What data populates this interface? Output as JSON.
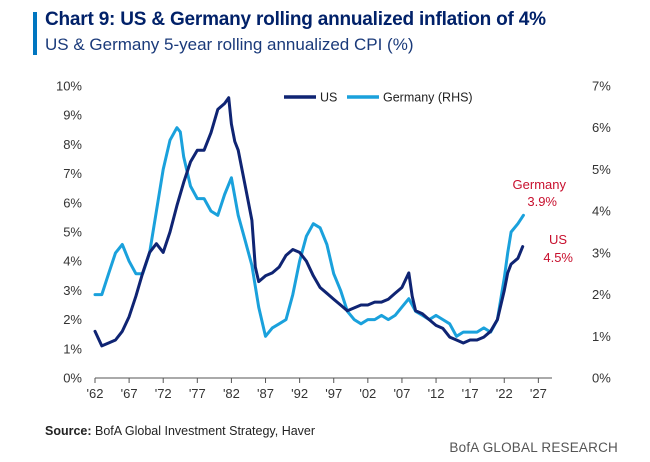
{
  "header": {
    "title": "Chart 9: US & Germany rolling annualized inflation of 4%",
    "subtitle": "US & Germany 5-year rolling annualized CPI (%)",
    "accent_color": "#0076c0"
  },
  "footer": {
    "source_prefix": "Source:",
    "source_text": " BofA Global Investment Strategy, Haver",
    "branding": "BofA GLOBAL RESEARCH"
  },
  "chart_data": {
    "type": "line",
    "title": "US & Germany 5-year rolling annualized CPI (%)",
    "x_ticks": [
      "'62",
      "'67",
      "'72",
      "'77",
      "'82",
      "'87",
      "'92",
      "'97",
      "'02",
      "'07",
      "'12",
      "'17",
      "'22",
      "'27"
    ],
    "x_tick_years": [
      1962,
      1967,
      1972,
      1977,
      1982,
      1987,
      1992,
      1997,
      2002,
      2007,
      2012,
      2017,
      2022,
      2027
    ],
    "xlim": [
      1962,
      2029
    ],
    "y_left": {
      "min": 0,
      "max": 10,
      "ticks": [
        "0%",
        "1%",
        "2%",
        "3%",
        "4%",
        "5%",
        "6%",
        "7%",
        "8%",
        "9%",
        "10%"
      ],
      "label": "US"
    },
    "y_right": {
      "min": 0,
      "max": 7,
      "ticks": [
        "0%",
        "1%",
        "2%",
        "3%",
        "4%",
        "5%",
        "6%",
        "7%"
      ],
      "label": "Germany (RHS)"
    },
    "series": [
      {
        "name": "US",
        "axis": "left",
        "color": "#0f2473",
        "x": [
          1962,
          1963,
          1964,
          1965,
          1966,
          1967,
          1968,
          1969,
          1970,
          1971,
          1972,
          1973,
          1974,
          1975,
          1976,
          1977,
          1978,
          1979,
          1980,
          1981,
          1981.6,
          1982,
          1982.5,
          1983,
          1984,
          1985,
          1985.5,
          1986,
          1987,
          1988,
          1989,
          1990,
          1991,
          1992,
          1993,
          1994,
          1995,
          1996,
          1997,
          1998,
          1999,
          2000,
          2001,
          2002,
          2003,
          2004,
          2005,
          2006,
          2007,
          2008,
          2008.5,
          2009,
          2010,
          2011,
          2012,
          2013,
          2014,
          2015,
          2016,
          2017,
          2018,
          2019,
          2020,
          2021,
          2022,
          2022.5,
          2023,
          2024,
          2024.7
        ],
        "values": [
          1.6,
          1.1,
          1.2,
          1.3,
          1.6,
          2.1,
          2.8,
          3.6,
          4.3,
          4.6,
          4.3,
          5.0,
          5.9,
          6.7,
          7.4,
          7.8,
          7.8,
          8.4,
          9.2,
          9.4,
          9.6,
          8.7,
          8.1,
          7.8,
          6.6,
          5.4,
          3.8,
          3.3,
          3.5,
          3.6,
          3.8,
          4.2,
          4.4,
          4.3,
          4.0,
          3.5,
          3.1,
          2.9,
          2.7,
          2.5,
          2.3,
          2.4,
          2.5,
          2.5,
          2.6,
          2.6,
          2.7,
          2.9,
          3.1,
          3.6,
          2.8,
          2.3,
          2.2,
          2.0,
          1.8,
          1.7,
          1.4,
          1.3,
          1.2,
          1.3,
          1.3,
          1.4,
          1.6,
          2.0,
          3.0,
          3.6,
          3.9,
          4.1,
          4.5
        ]
      },
      {
        "name": "Germany (RHS)",
        "axis": "right",
        "color": "#1aa1dc",
        "x": [
          1962,
          1963,
          1964,
          1965,
          1966,
          1967,
          1968,
          1969,
          1970,
          1971,
          1972,
          1973,
          1974,
          1974.5,
          1975,
          1976,
          1977,
          1978,
          1979,
          1980,
          1981,
          1982,
          1983,
          1984,
          1985,
          1986,
          1987,
          1988,
          1989,
          1990,
          1991,
          1992,
          1993,
          1994,
          1995,
          1996,
          1997,
          1998,
          1999,
          2000,
          2001,
          2002,
          2003,
          2004,
          2005,
          2006,
          2007,
          2008,
          2009,
          2010,
          2011,
          2012,
          2013,
          2014,
          2015,
          2016,
          2017,
          2018,
          2019,
          2020,
          2021,
          2022,
          2022.5,
          2023,
          2024,
          2024.8
        ],
        "values": [
          2.0,
          2.0,
          2.5,
          3.0,
          3.2,
          2.8,
          2.5,
          2.5,
          3.0,
          4.0,
          5.0,
          5.7,
          6.0,
          5.9,
          5.3,
          4.6,
          4.3,
          4.3,
          4.0,
          3.9,
          4.4,
          4.8,
          3.9,
          3.3,
          2.7,
          1.7,
          1.0,
          1.2,
          1.3,
          1.4,
          2.0,
          2.8,
          3.4,
          3.7,
          3.6,
          3.2,
          2.5,
          2.1,
          1.6,
          1.4,
          1.3,
          1.4,
          1.4,
          1.5,
          1.4,
          1.5,
          1.7,
          1.9,
          1.6,
          1.5,
          1.4,
          1.5,
          1.4,
          1.3,
          1.0,
          1.1,
          1.1,
          1.1,
          1.2,
          1.1,
          1.4,
          2.4,
          3.0,
          3.5,
          3.7,
          3.9
        ]
      }
    ],
    "legend": [
      {
        "label": "US",
        "color": "#0f2473"
      },
      {
        "label": "Germany (RHS)",
        "color": "#1aa1dc"
      }
    ],
    "annotations": [
      {
        "label": "Germany",
        "value_label": "3.9%",
        "color": "#c8102e"
      },
      {
        "label": "US",
        "value_label": "4.5%",
        "color": "#c8102e"
      }
    ]
  }
}
